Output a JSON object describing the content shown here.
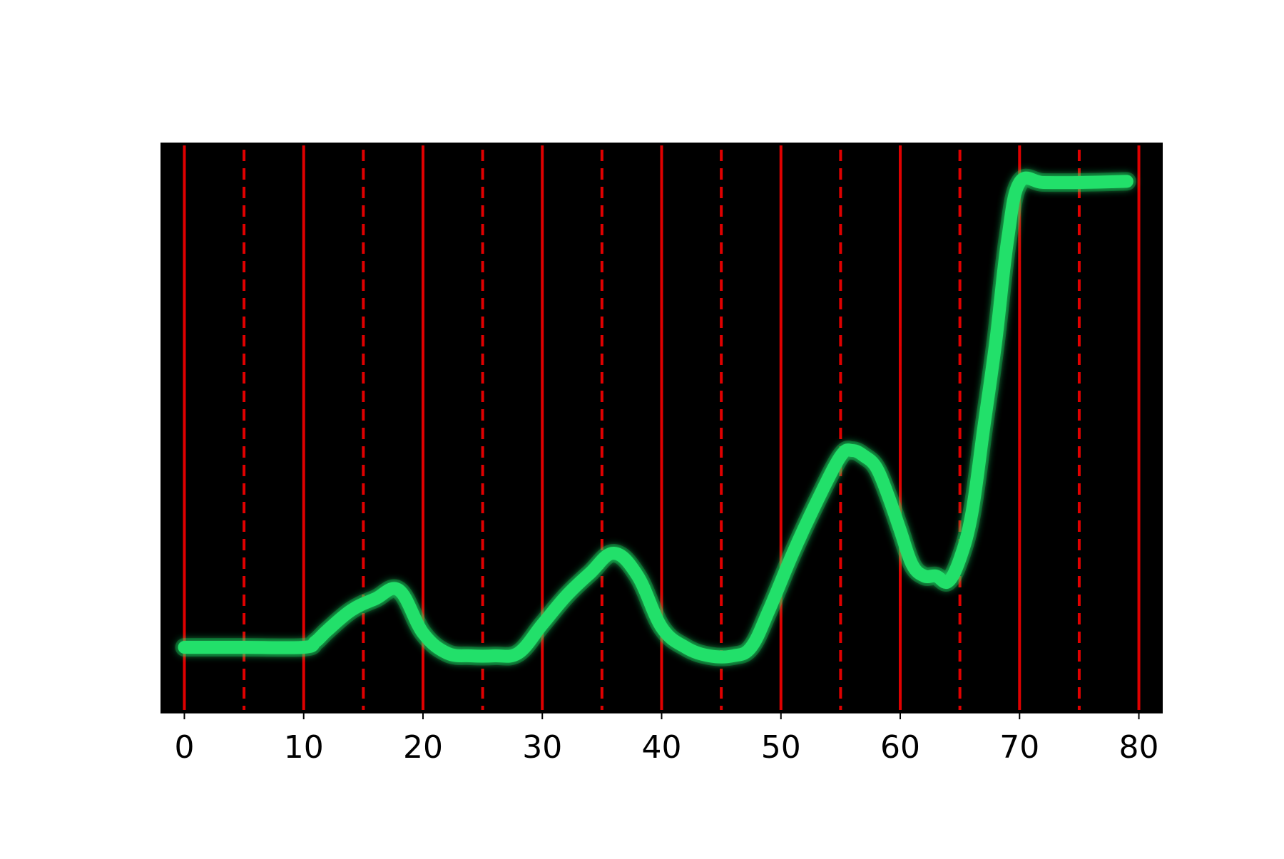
{
  "chart_data": {
    "type": "line",
    "title": "",
    "xlabel": "",
    "ylabel": "",
    "xlim": [
      -2,
      82
    ],
    "ylim": [
      0,
      100
    ],
    "grid": false,
    "background_color": "#000000",
    "line_color": "#22e06a",
    "line_glow_color": "#12ff6a",
    "vline_color": "#e00000",
    "x_ticks": [
      0,
      10,
      20,
      30,
      40,
      50,
      60,
      70,
      80
    ],
    "x_tick_labels": [
      "0",
      "10",
      "20",
      "30",
      "40",
      "50",
      "60",
      "70",
      "80"
    ],
    "vlines_solid": [
      0,
      10,
      20,
      30,
      40,
      50,
      60,
      70,
      80
    ],
    "vlines_dashed": [
      5,
      15,
      25,
      35,
      45,
      55,
      65,
      75
    ],
    "series": [
      {
        "x": [
          0,
          5,
          10,
          11,
          12,
          14,
          16,
          18,
          20,
          22,
          24,
          26,
          28,
          30,
          32,
          34,
          36,
          38,
          40,
          42,
          44,
          46,
          47.5,
          49,
          51,
          53,
          55,
          56,
          57,
          58,
          59,
          60,
          61,
          62,
          63,
          64,
          65,
          66,
          67,
          68,
          69,
          70,
          72,
          75,
          79
        ],
        "y": [
          11.5,
          11.5,
          11.5,
          12.5,
          14.5,
          18,
          20,
          21.5,
          14,
          10.5,
          10,
          10,
          10.5,
          15.5,
          20.5,
          24.5,
          28,
          24,
          15,
          11.5,
          10,
          10,
          11.5,
          18,
          28,
          37,
          45,
          46,
          45,
          43,
          38,
          32,
          26,
          24,
          24,
          23,
          27,
          35,
          50,
          65,
          83,
          93,
          93,
          93,
          93.2
        ]
      }
    ]
  }
}
